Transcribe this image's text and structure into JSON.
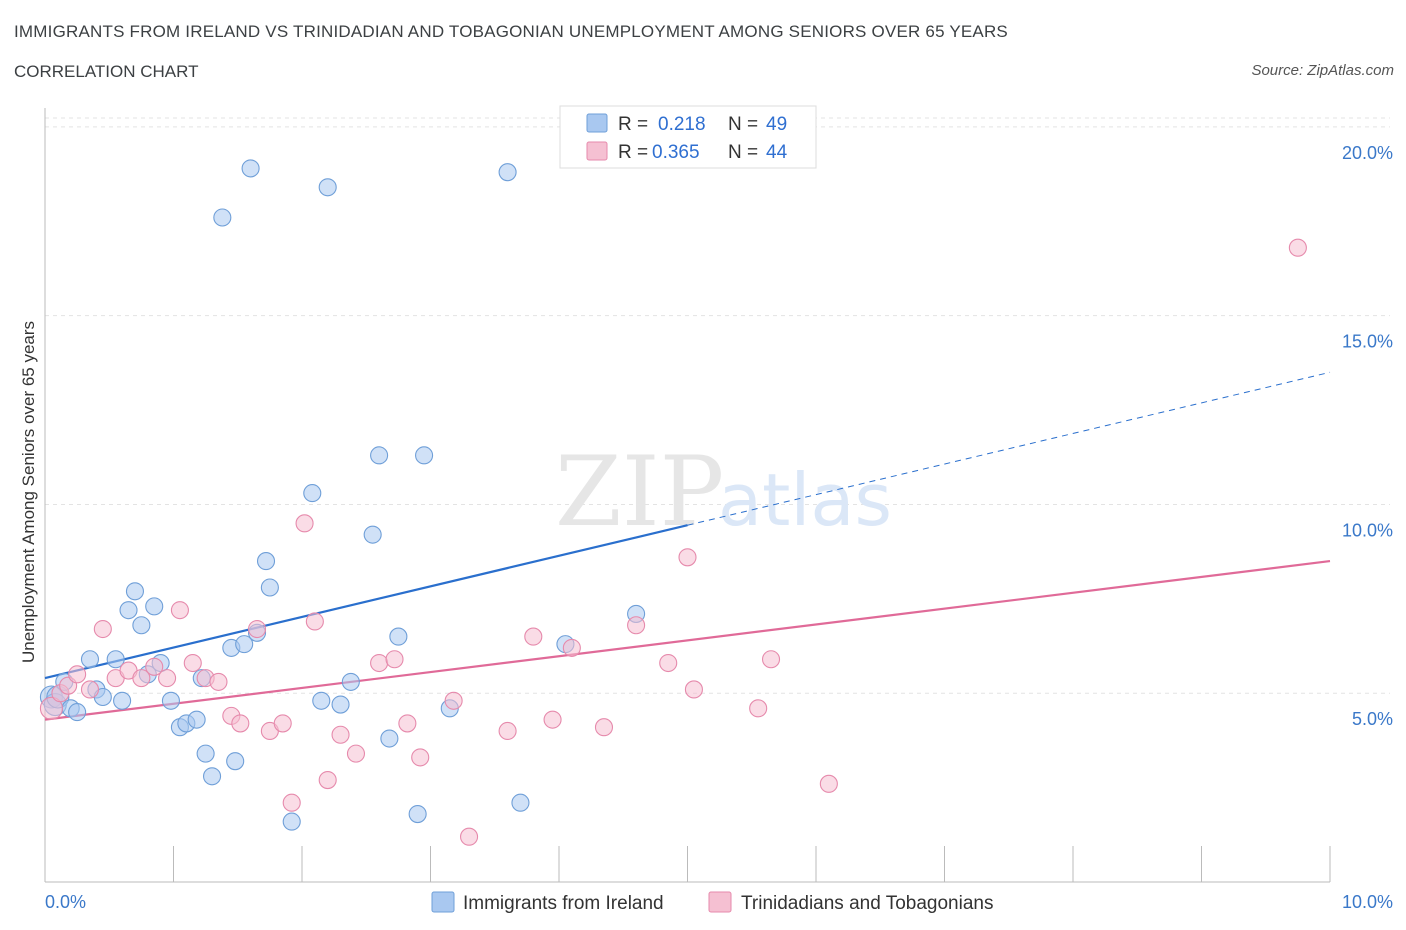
{
  "header": {
    "title": "IMMIGRANTS FROM IRELAND VS TRINIDADIAN AND TOBAGONIAN UNEMPLOYMENT AMONG SENIORS OVER 65 YEARS",
    "subtitle": "CORRELATION CHART",
    "source": "Source: ZipAtlas.com"
  },
  "watermark": {
    "part1": "ZIP",
    "part2": "atlas"
  },
  "chart_data": {
    "type": "scatter",
    "xlabel": "",
    "ylabel": "Unemployment Among Seniors over 65 years",
    "xlim": [
      0,
      10
    ],
    "ylim": [
      0,
      20.5
    ],
    "x_tick_labels": [
      "0.0%",
      "10.0%"
    ],
    "y_ticks": [
      5,
      10,
      15,
      20
    ],
    "y_tick_labels": [
      "5.0%",
      "10.0%",
      "15.0%",
      "20.0%"
    ],
    "grid": true,
    "legend_placement": "top-center",
    "stats": [
      {
        "r_label": "R =",
        "r": "0.218",
        "n_label": "N =",
        "n": "49"
      },
      {
        "r_label": "R =",
        "r": "0.365",
        "n_label": "N =",
        "n": "44"
      }
    ],
    "series": [
      {
        "name": "Immigrants from Ireland",
        "color": "#a9c8f0",
        "stroke": "#6f9fd8",
        "line_color": "#2a6fcd",
        "trend": {
          "x0": 0,
          "y0": 5.4,
          "x1": 10,
          "y1": 13.5,
          "solid_until": 5.0
        },
        "points": [
          [
            0.05,
            4.9
          ],
          [
            0.08,
            4.7
          ],
          [
            0.1,
            4.9
          ],
          [
            0.15,
            5.3
          ],
          [
            0.2,
            4.6
          ],
          [
            0.25,
            4.5
          ],
          [
            0.35,
            5.9
          ],
          [
            0.4,
            5.1
          ],
          [
            0.45,
            4.9
          ],
          [
            0.55,
            5.9
          ],
          [
            0.6,
            4.8
          ],
          [
            0.65,
            7.2
          ],
          [
            0.7,
            7.7
          ],
          [
            0.75,
            6.8
          ],
          [
            0.8,
            5.5
          ],
          [
            0.85,
            7.3
          ],
          [
            0.9,
            5.8
          ],
          [
            0.98,
            4.8
          ],
          [
            1.05,
            4.1
          ],
          [
            1.1,
            4.2
          ],
          [
            1.18,
            4.3
          ],
          [
            1.22,
            5.4
          ],
          [
            1.25,
            3.4
          ],
          [
            1.3,
            2.8
          ],
          [
            1.38,
            17.6
          ],
          [
            1.45,
            6.2
          ],
          [
            1.48,
            3.2
          ],
          [
            1.55,
            6.3
          ],
          [
            1.6,
            18.9
          ],
          [
            1.65,
            6.6
          ],
          [
            1.72,
            8.5
          ],
          [
            1.75,
            7.8
          ],
          [
            1.92,
            1.6
          ],
          [
            2.08,
            10.3
          ],
          [
            2.15,
            4.8
          ],
          [
            2.2,
            18.4
          ],
          [
            2.3,
            4.7
          ],
          [
            2.38,
            5.3
          ],
          [
            2.55,
            9.2
          ],
          [
            2.6,
            11.3
          ],
          [
            2.68,
            3.8
          ],
          [
            2.75,
            6.5
          ],
          [
            2.95,
            11.3
          ],
          [
            2.9,
            1.8
          ],
          [
            3.15,
            4.6
          ],
          [
            3.6,
            18.8
          ],
          [
            3.7,
            2.1
          ],
          [
            4.05,
            6.3
          ],
          [
            4.6,
            7.1
          ]
        ]
      },
      {
        "name": "Trinidadians and Tobagonians",
        "color": "#f5c0d2",
        "stroke": "#e68aac",
        "line_color": "#e06a98",
        "trend": {
          "x0": 0,
          "y0": 4.3,
          "x1": 10,
          "y1": 8.5,
          "solid_until": 10
        },
        "points": [
          [
            0.05,
            4.6
          ],
          [
            0.12,
            5.0
          ],
          [
            0.18,
            5.2
          ],
          [
            0.25,
            5.5
          ],
          [
            0.35,
            5.1
          ],
          [
            0.45,
            6.7
          ],
          [
            0.55,
            5.4
          ],
          [
            0.65,
            5.6
          ],
          [
            0.75,
            5.4
          ],
          [
            0.85,
            5.7
          ],
          [
            0.95,
            5.4
          ],
          [
            1.05,
            7.2
          ],
          [
            1.15,
            5.8
          ],
          [
            1.25,
            5.4
          ],
          [
            1.35,
            5.3
          ],
          [
            1.45,
            4.4
          ],
          [
            1.52,
            4.2
          ],
          [
            1.65,
            6.7
          ],
          [
            1.75,
            4.0
          ],
          [
            1.85,
            4.2
          ],
          [
            1.92,
            2.1
          ],
          [
            2.02,
            9.5
          ],
          [
            2.1,
            6.9
          ],
          [
            2.2,
            2.7
          ],
          [
            2.3,
            3.9
          ],
          [
            2.42,
            3.4
          ],
          [
            2.6,
            5.8
          ],
          [
            2.72,
            5.9
          ],
          [
            2.82,
            4.2
          ],
          [
            2.92,
            3.3
          ],
          [
            3.18,
            4.8
          ],
          [
            3.3,
            1.2
          ],
          [
            3.6,
            4.0
          ],
          [
            3.8,
            6.5
          ],
          [
            3.95,
            4.3
          ],
          [
            4.1,
            6.2
          ],
          [
            4.35,
            4.1
          ],
          [
            4.6,
            6.8
          ],
          [
            4.85,
            5.8
          ],
          [
            5.0,
            8.6
          ],
          [
            5.05,
            5.1
          ],
          [
            5.55,
            4.6
          ],
          [
            5.65,
            5.9
          ],
          [
            6.1,
            2.6
          ],
          [
            9.75,
            16.8
          ]
        ]
      }
    ]
  }
}
